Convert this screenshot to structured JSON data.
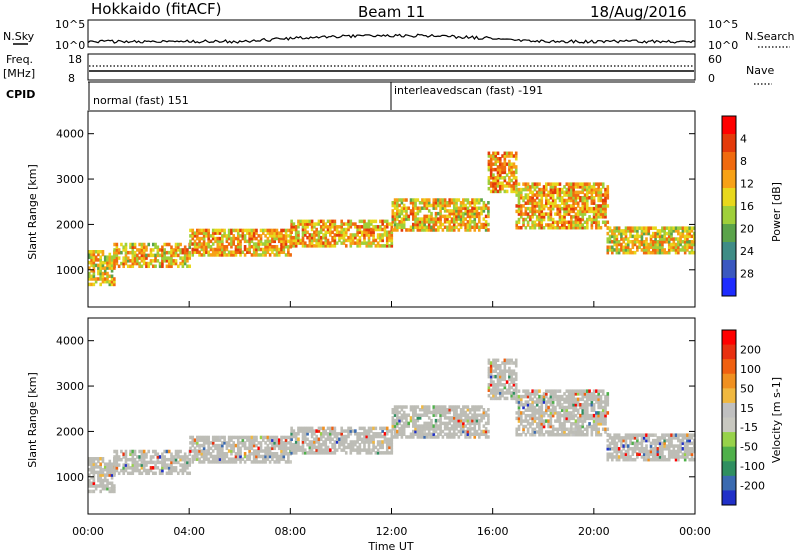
{
  "header": {
    "station": "Hokkaido (fitACF)",
    "beam": "Beam 11",
    "date": "18/Aug/2016"
  },
  "top_panels": {
    "nsky_label": "N.Sky",
    "nsearch_label": "N.Search",
    "noise_left_ticks": [
      "10^5",
      "10^0"
    ],
    "noise_right_ticks": [
      "10^5",
      "10^0"
    ],
    "freq_label_1": "Freq.",
    "freq_label_2": "[MHz]",
    "freq_left_ticks": [
      "18",
      "8"
    ],
    "nave_label": "Nave",
    "nave_right_ticks": [
      "60",
      "0"
    ],
    "cpid_label": "CPID",
    "cpid_segments": [
      {
        "text": "normal (fast) 151",
        "start_hour": 0
      },
      {
        "text": "interleavedscan (fast) -191",
        "start_hour": 12
      }
    ]
  },
  "time_axis": {
    "label": "Time UT",
    "ticks": [
      "00:00",
      "04:00",
      "08:00",
      "12:00",
      "16:00",
      "20:00",
      "00:00"
    ]
  },
  "chart_data": [
    {
      "type": "heatmap",
      "name": "power",
      "ylabel": "Slant Range [km]",
      "yticks": [
        1000,
        2000,
        3000,
        4000
      ],
      "ylim": [
        180,
        4500
      ],
      "xlim_hours": [
        0,
        24
      ],
      "colorbar_label": "Power [dB]",
      "colorbar_ticks": [
        "4",
        "8",
        "12",
        "16",
        "20",
        "24",
        "28"
      ],
      "colorbar_colors": [
        "#1e2cff",
        "#3a58c0",
        "#3f8c86",
        "#5aa34a",
        "#9fcf3a",
        "#e8d81c",
        "#f7a116",
        "#f06a0e",
        "#e43a0a",
        "#ff0000"
      ],
      "bands": [
        {
          "h": [
            0,
            1000
          ],
          "range": [
            650,
            1400
          ],
          "value": 24
        },
        {
          "h": [
            1000,
            4000
          ],
          "range": [
            1050,
            1550
          ],
          "value": 26
        },
        {
          "h": [
            4000,
            8000
          ],
          "range": [
            1300,
            1900
          ],
          "value": 27
        },
        {
          "h": [
            8000,
            12000
          ],
          "range": [
            1500,
            2100
          ],
          "value": 27
        },
        {
          "h": [
            12000,
            15800
          ],
          "range": [
            1850,
            2550
          ],
          "value": 26
        },
        {
          "h": [
            15800,
            16900
          ],
          "range": [
            2700,
            3550
          ],
          "value": 28
        },
        {
          "h": [
            16900,
            20500
          ],
          "range": [
            1900,
            2900
          ],
          "value": 27
        },
        {
          "h": [
            20500,
            24000
          ],
          "range": [
            1350,
            1950
          ],
          "value": 25
        }
      ]
    },
    {
      "type": "heatmap",
      "name": "velocity",
      "ylabel": "Slant Range [km]",
      "yticks": [
        1000,
        2000,
        3000,
        4000
      ],
      "ylim": [
        180,
        4500
      ],
      "xlim_hours": [
        0,
        24
      ],
      "colorbar_label": "Velocity [m s-1]",
      "colorbar_ticks": [
        "200",
        "100",
        "50",
        "15",
        "-15",
        "-50",
        "-100",
        "-200"
      ],
      "colorbar_colors": [
        "#2030c8",
        "#3a6ab0",
        "#2f8f60",
        "#4fb04a",
        "#97d24a",
        "#c8c8c0",
        "#c0c0c0",
        "#f0b840",
        "#f09020",
        "#f06010",
        "#e83010",
        "#ff0000"
      ],
      "ground_scatter_color": "#bdbdb6"
    }
  ]
}
